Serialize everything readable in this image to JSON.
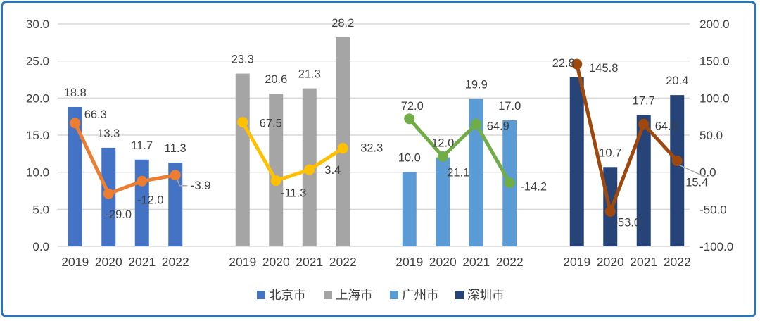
{
  "frame": {
    "border_color": "#2E75B6",
    "background": "#FFFFFF"
  },
  "chart_data": {
    "type": "bar",
    "subtype": "clustered-bars-with-line-overlay",
    "title": "",
    "xlabel": "",
    "ylabel": "",
    "categories": [
      "2019",
      "2020",
      "2021",
      "2022"
    ],
    "grid": true,
    "legend_position": "bottom",
    "left_axis": {
      "min": 0,
      "max": 30,
      "step": 5,
      "tick_labels": [
        "30.0",
        "25.0",
        "20.0",
        "15.0",
        "10.0",
        "5.0",
        "0.0"
      ]
    },
    "right_axis": {
      "min": -100,
      "max": 200,
      "step": 50,
      "tick_labels": [
        "200.0",
        "150.0",
        "100.0",
        "50.0",
        "0.0",
        "-50.0",
        "-100.0"
      ]
    },
    "series": [
      {
        "name": "北京市",
        "bar_color": "#4472C4",
        "line_color": "#ED7D31",
        "bar_values": [
          18.8,
          13.3,
          11.7,
          11.3
        ],
        "line_values": [
          66.3,
          -29.0,
          -12.0,
          -3.9
        ],
        "bar_label_offsets": [
          [
            0,
            0
          ],
          [
            0,
            0
          ],
          [
            0,
            0
          ],
          [
            0,
            0
          ]
        ],
        "line_label_offsets": [
          [
            29,
            -13
          ],
          [
            14,
            29
          ],
          [
            12,
            26
          ],
          [
            36,
            14
          ]
        ],
        "leaders": [
          null,
          null,
          null,
          "elbow"
        ]
      },
      {
        "name": "上海市",
        "bar_color": "#A5A5A5",
        "line_color": "#FFC000",
        "bar_values": [
          23.3,
          20.6,
          21.3,
          28.2
        ],
        "line_values": [
          67.5,
          -11.3,
          3.4,
          32.3
        ],
        "bar_label_offsets": [
          [
            0,
            0
          ],
          [
            0,
            0
          ],
          [
            0,
            0
          ],
          [
            0,
            0
          ]
        ],
        "line_label_offsets": [
          [
            40,
            1
          ],
          [
            25,
            17
          ],
          [
            33,
            0
          ],
          [
            41,
            -1
          ]
        ],
        "leaders": [
          null,
          null,
          null,
          null
        ]
      },
      {
        "name": "广州市",
        "bar_color": "#5B9BD5",
        "line_color": "#70AD47",
        "bar_values": [
          10.0,
          12.0,
          19.9,
          17.0
        ],
        "line_values": [
          72.0,
          21.1,
          64.9,
          -14.2
        ],
        "bar_label_offsets": [
          [
            0,
            0
          ],
          [
            0,
            0
          ],
          [
            0,
            0
          ],
          [
            0,
            0
          ]
        ],
        "line_label_offsets": [
          [
            4,
            -19
          ],
          [
            22,
            22
          ],
          [
            31,
            2
          ],
          [
            34,
            5
          ]
        ],
        "leaders": [
          null,
          null,
          null,
          null
        ]
      },
      {
        "name": "深圳市",
        "bar_color": "#264478",
        "line_color": "#9E480E",
        "bar_values": [
          22.8,
          10.7,
          17.7,
          20.4
        ],
        "line_values": [
          145.8,
          -53.0,
          64.9,
          15.4
        ],
        "bar_label_offsets": [
          [
            -19,
            0
          ],
          [
            0,
            0
          ],
          [
            0,
            0
          ],
          [
            0,
            0
          ]
        ],
        "line_label_offsets": [
          [
            38,
            5
          ],
          [
            24,
            15
          ],
          [
            32,
            2
          ],
          [
            28,
            30
          ]
        ],
        "leaders": [
          null,
          null,
          null,
          "diagonal"
        ]
      }
    ],
    "legend": [
      {
        "label": "北京市",
        "color": "#4472C4"
      },
      {
        "label": "上海市",
        "color": "#A5A5A5"
      },
      {
        "label": "广州市",
        "color": "#5B9BD5"
      },
      {
        "label": "深圳市",
        "color": "#264478"
      }
    ],
    "colors": {
      "gridline": "#D9D9D9",
      "text": "#404040",
      "leader_line": "#A6A6A6"
    }
  }
}
